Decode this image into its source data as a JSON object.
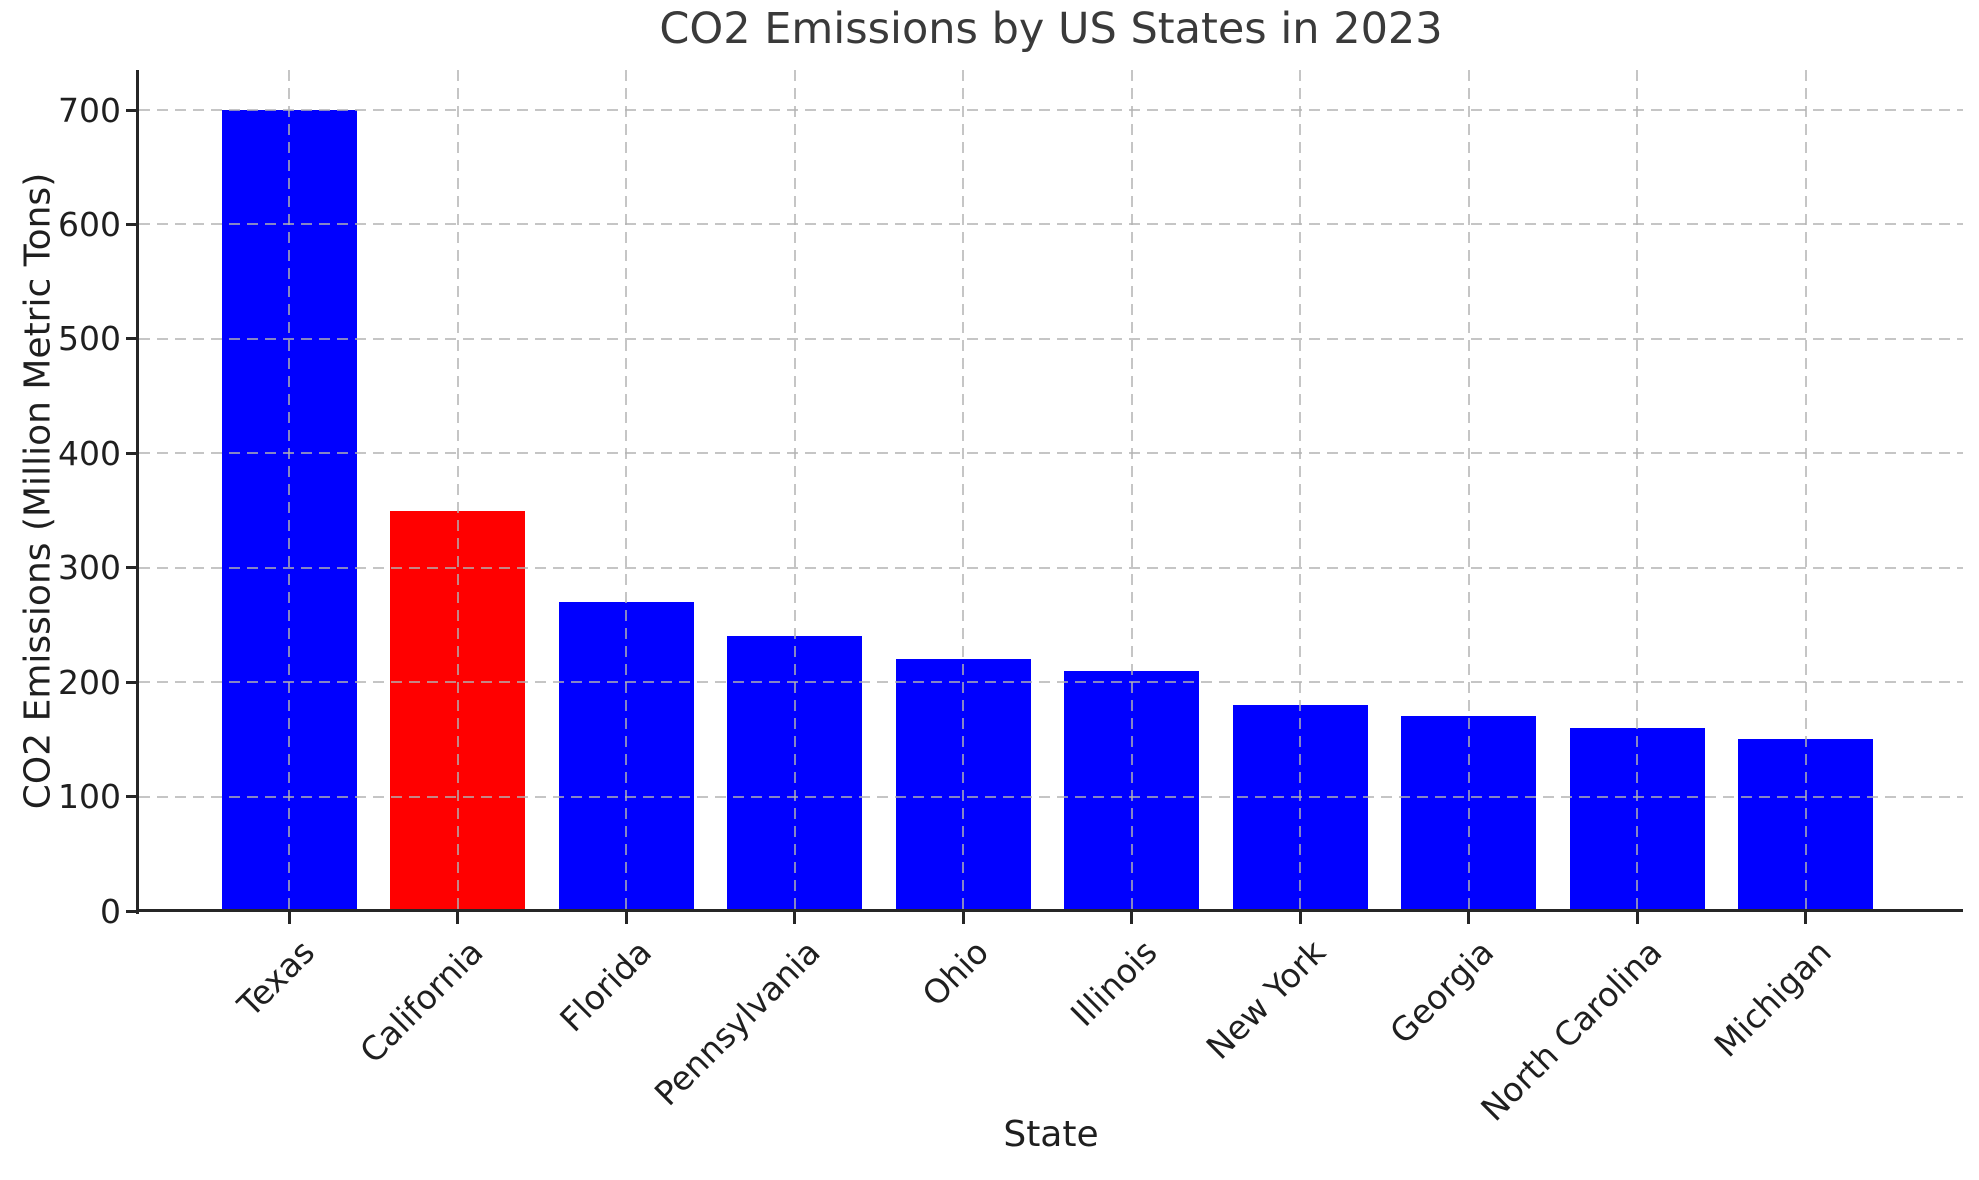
{
  "page": {
    "background": "#ffffff"
  },
  "chart_data": {
    "type": "bar",
    "title": "CO2 Emissions by US States in 2023",
    "xlabel": "State",
    "ylabel": "CO2 Emissions (Million Metric Tons)",
    "categories": [
      "Texas",
      "California",
      "Florida",
      "Pennsylvania",
      "Ohio",
      "Illinois",
      "New York",
      "Georgia",
      "North Carolina",
      "Michigan"
    ],
    "values": [
      700,
      350,
      270,
      240,
      220,
      210,
      180,
      170,
      160,
      150
    ],
    "bar_colors": [
      "#0000ff",
      "#ff0000",
      "#0000ff",
      "#0000ff",
      "#0000ff",
      "#0000ff",
      "#0000ff",
      "#0000ff",
      "#0000ff",
      "#0000ff"
    ],
    "default_bar_color": "#0000ff",
    "highlight": {
      "category": "California",
      "color": "#ff0000"
    },
    "ylim": [
      0,
      735
    ],
    "yticks": [
      0,
      100,
      200,
      300,
      400,
      500,
      600,
      700
    ],
    "x_tick_rotation_deg": 45,
    "grid": "dashed, drawn above bars",
    "grid_color": "#b2b2b2",
    "legend": "none"
  }
}
